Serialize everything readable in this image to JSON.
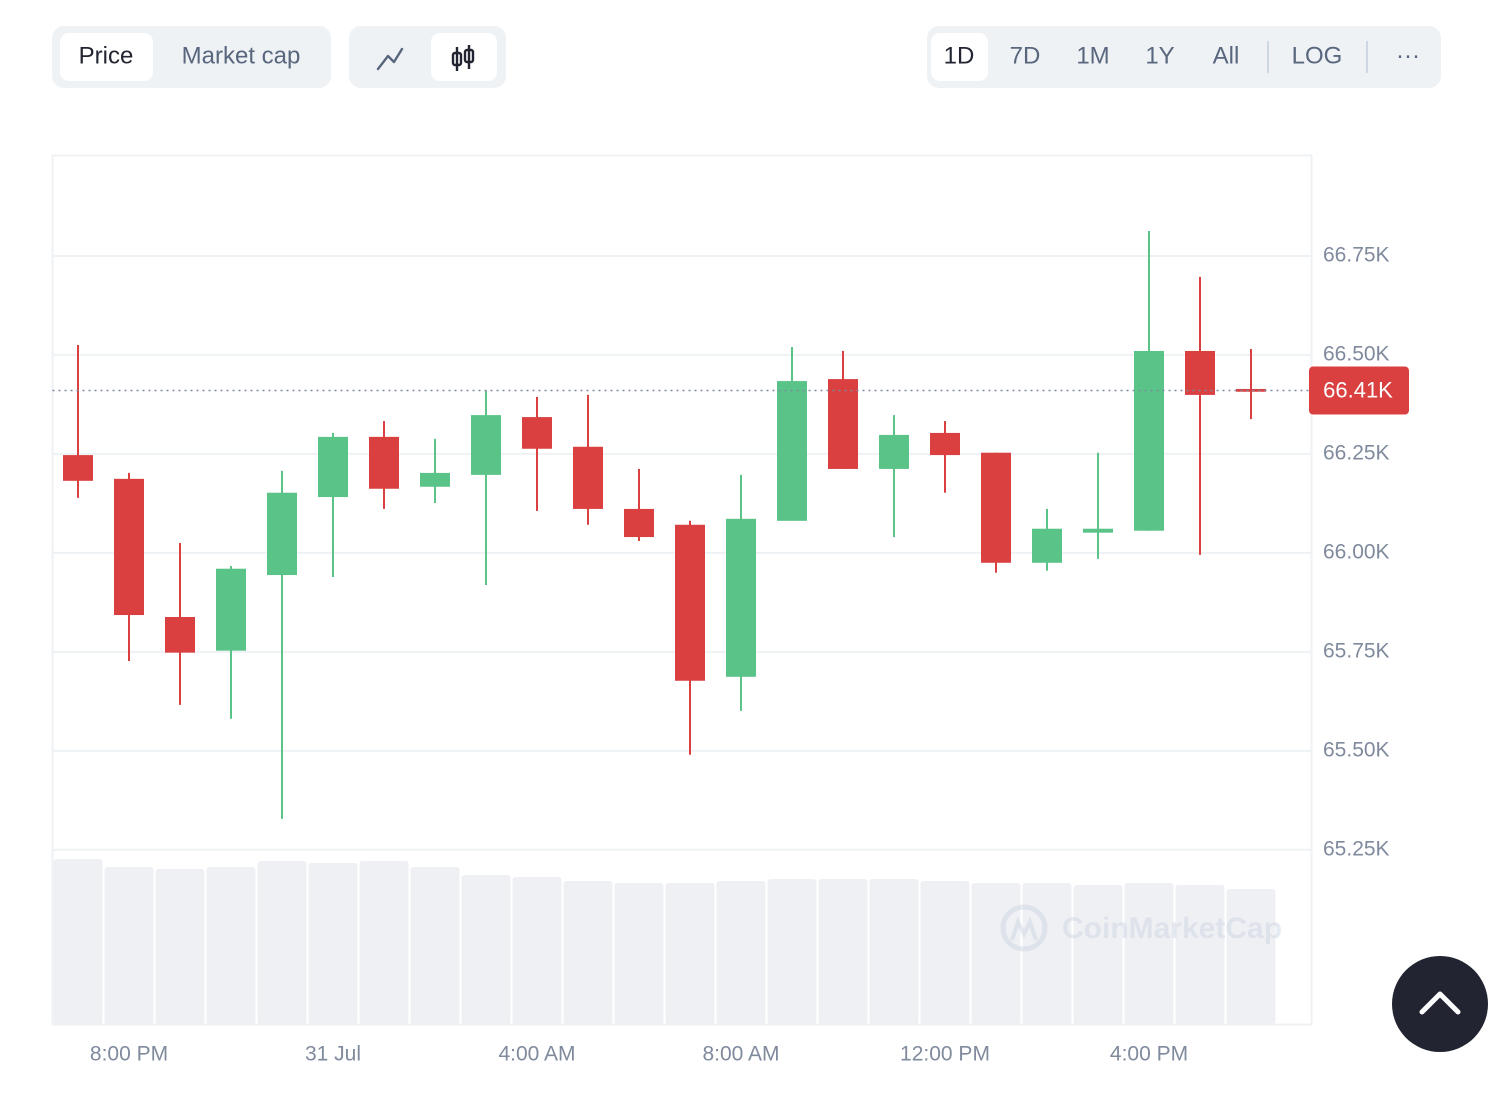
{
  "controls": {
    "metric_tabs": [
      "Price",
      "Market cap"
    ],
    "ranges": [
      "1D",
      "7D",
      "1M",
      "1Y",
      "All"
    ],
    "scale": "LOG",
    "more": "···"
  },
  "watermark": "CoinMarketCap",
  "chart_data": {
    "type": "candlestick",
    "categories": [
      null,
      "8:00 PM",
      null,
      null,
      null,
      "31 Jul",
      null,
      null,
      null,
      "4:00 AM",
      null,
      null,
      null,
      "8:00 AM",
      null,
      null,
      null,
      "12:00 PM",
      null,
      null,
      null,
      "4:00 PM",
      null,
      null
    ],
    "open": [
      66247,
      66187,
      65838,
      65753,
      65944,
      66141,
      66293,
      66167,
      66197,
      66343,
      66268,
      66111,
      66071,
      65687,
      66081,
      66439,
      66212,
      66303,
      66253,
      65975,
      66051,
      66056,
      66510,
      66414
    ],
    "high": [
      66525,
      66202,
      66025,
      65967,
      66207,
      66303,
      66333,
      66288,
      66409,
      66394,
      66399,
      66212,
      66081,
      66197,
      66520,
      66510,
      66348,
      66333,
      66253,
      66111,
      66253,
      66813,
      66697,
      66515
    ],
    "low": [
      66139,
      65727,
      65616,
      65581,
      65328,
      65939,
      66111,
      66126,
      65919,
      66106,
      66071,
      66030,
      65490,
      65601,
      66081,
      66212,
      66040,
      66152,
      65950,
      65955,
      65985,
      66056,
      65995,
      66338
    ],
    "close": [
      66182,
      65843,
      65748,
      65960,
      66152,
      66293,
      66162,
      66202,
      66348,
      66263,
      66111,
      66040,
      65677,
      66086,
      66434,
      66212,
      66298,
      66247,
      65975,
      66061,
      66061,
      66510,
      66399,
      66407
    ],
    "volume": [
      165,
      157,
      155,
      157,
      163,
      161,
      163,
      157,
      149,
      147,
      143,
      141,
      141,
      143,
      145,
      145,
      145,
      143,
      141,
      141,
      139,
      141,
      139,
      135
    ],
    "up_color": "#5ac388",
    "down_color": "#d9403f",
    "volume_color": "#eff0f4",
    "ylim": [
      64810,
      67005
    ],
    "yticks": [
      {
        "value": 65250,
        "label": "65.25K"
      },
      {
        "value": 65500,
        "label": "65.50K"
      },
      {
        "value": 65750,
        "label": "65.75K"
      },
      {
        "value": 66000,
        "label": "66.00K"
      },
      {
        "value": 66250,
        "label": "66.25K"
      },
      {
        "value": 66500,
        "label": "66.50K"
      },
      {
        "value": 66750,
        "label": "66.75K"
      }
    ],
    "grid": true,
    "last_price": {
      "value": 66410,
      "label": "66.41K"
    }
  }
}
